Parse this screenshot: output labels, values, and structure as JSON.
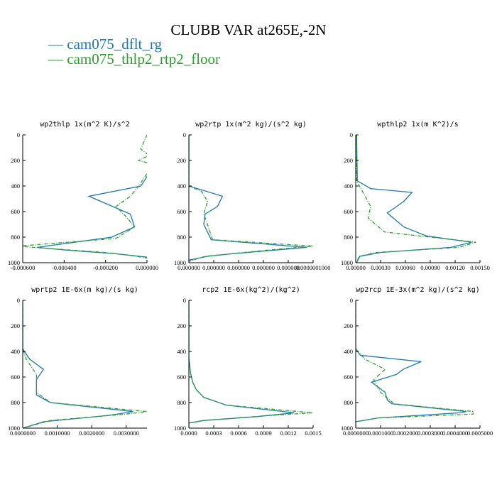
{
  "title": "CLUBB VAR at265E,-2N",
  "legend": [
    {
      "label": "cam075_dflt_rg",
      "color": "#1f77b4"
    },
    {
      "label": "cam075_thlp2_rtp2_floor",
      "color": "#2ca02c"
    }
  ],
  "chart_data": [
    {
      "type": "line",
      "title": "wp2thlp   1x(m^2 K)/s^2",
      "xlim": [
        -0.0006,
        0.0
      ],
      "ylim": [
        1000,
        0
      ],
      "xticks": [
        "-0.000600",
        "-0.000400",
        "-0.000200",
        "0.000000"
      ],
      "yticks": [
        "0",
        "200",
        "400",
        "600",
        "800",
        "1000"
      ],
      "series": [
        {
          "name": "cam075_dflt_rg",
          "points": [
            [
              2e-05,
              0
            ],
            [
              2e-05,
              100
            ],
            [
              3e-05,
              190
            ],
            [
              4e-05,
              230
            ],
            [
              -3e-05,
              400
            ],
            [
              -0.00028,
              480
            ],
            [
              -0.00018,
              550
            ],
            [
              -8e-05,
              620
            ],
            [
              -6e-05,
              720
            ],
            [
              -0.00017,
              800
            ],
            [
              -0.00053,
              880
            ],
            [
              -0.0004,
              900
            ],
            [
              -0.00015,
              930
            ],
            [
              2e-05,
              960
            ],
            [
              2e-05,
              1000
            ]
          ]
        },
        {
          "name": "cam075_thlp2_rtp2_floor",
          "points": [
            [
              0.0,
              0
            ],
            [
              -3e-05,
              110
            ],
            [
              1e-05,
              160
            ],
            [
              -4e-05,
              200
            ],
            [
              3e-05,
              230
            ],
            [
              -4e-05,
              400
            ],
            [
              -8e-05,
              480
            ],
            [
              -0.00015,
              560
            ],
            [
              -0.0001,
              640
            ],
            [
              -6e-05,
              720
            ],
            [
              -0.00015,
              810
            ],
            [
              -0.00062,
              870
            ],
            [
              -0.00055,
              880
            ],
            [
              -0.0002,
              920
            ],
            [
              -5e-05,
              950
            ],
            [
              2e-05,
              970
            ],
            [
              2e-05,
              1000
            ]
          ]
        }
      ]
    },
    {
      "type": "line",
      "title": "wp2rtp   1x(m^2 kg)/(s^2 kg)",
      "xlim": [
        0.0,
        1e-06
      ],
      "ylim": [
        1000,
        0
      ],
      "xticks": [
        "0.000000",
        "0.000000",
        "0.000000",
        "0.000000",
        "0.000000",
        "0.0000001000"
      ],
      "yticks": [
        "0",
        "200",
        "400",
        "600",
        "800",
        "1000"
      ],
      "series": [
        {
          "name": "cam075_dflt_rg",
          "points": [
            [
              0.0,
              0
            ],
            [
              0.0,
              400
            ],
            [
              2.7e-07,
              480
            ],
            [
              2.3e-07,
              560
            ],
            [
              1.3e-07,
              620
            ],
            [
              1.2e-07,
              700
            ],
            [
              1.8e-07,
              820
            ],
            [
              9.5e-07,
              880
            ],
            [
              3.5e-07,
              930
            ],
            [
              1.5e-07,
              950
            ],
            [
              0.0,
              980
            ],
            [
              0.0,
              1000
            ]
          ]
        },
        {
          "name": "cam075_thlp2_rtp2_floor",
          "points": [
            [
              0.0,
              0
            ],
            [
              0.0,
              400
            ],
            [
              1e-07,
              440
            ],
            [
              1.5e-07,
              520
            ],
            [
              1.2e-07,
              620
            ],
            [
              1.5e-07,
              700
            ],
            [
              1.9e-07,
              820
            ],
            [
              1e-06,
              870
            ],
            [
              6.5e-07,
              900
            ],
            [
              1.3e-07,
              950
            ],
            [
              0.0,
              990
            ],
            [
              0.0,
              1000
            ]
          ]
        }
      ]
    },
    {
      "type": "line",
      "title": "wpthlp2   1x(m K^2)/s",
      "xlim": [
        0.0,
        0.0015
      ],
      "ylim": [
        1000,
        0
      ],
      "xticks": [
        "0.00000",
        "0.00030",
        "0.00060",
        "0.00090",
        "0.00120",
        "0.00150"
      ],
      "yticks": [
        "0",
        "200",
        "400",
        "600",
        "800",
        "1000"
      ],
      "series": [
        {
          "name": "cam075_dflt_rg",
          "points": [
            [
              1e-05,
              0
            ],
            [
              2e-05,
              360
            ],
            [
              0.00018,
              420
            ],
            [
              0.00068,
              450
            ],
            [
              0.00058,
              520
            ],
            [
              0.00045,
              580
            ],
            [
              0.00038,
              610
            ],
            [
              0.00058,
              720
            ],
            [
              0.00085,
              790
            ],
            [
              0.0014,
              840
            ],
            [
              0.00115,
              880
            ],
            [
              0.0003,
              920
            ],
            [
              5e-05,
              950
            ],
            [
              1e-05,
              1000
            ]
          ]
        },
        {
          "name": "cam075_thlp2_rtp2_floor",
          "points": [
            [
              1e-05,
              0
            ],
            [
              1e-05,
              360
            ],
            [
              8e-05,
              440
            ],
            [
              0.00018,
              560
            ],
            [
              0.00015,
              650
            ],
            [
              0.00035,
              760
            ],
            [
              0.00145,
              840
            ],
            [
              0.00125,
              880
            ],
            [
              0.00025,
              920
            ],
            [
              4e-05,
              950
            ],
            [
              1e-05,
              1000
            ]
          ]
        }
      ]
    },
    {
      "type": "line",
      "title": "wprtp2   1E-6x(m kg)/(s kg)",
      "xlim": [
        0.0,
        0.0036
      ],
      "ylim": [
        1000,
        0
      ],
      "xticks": [
        "0.0000000",
        "0.0010000",
        "0.0020000",
        "0.0030000"
      ],
      "yticks": [
        "0",
        "200",
        "400",
        "600",
        "800",
        "1000"
      ],
      "series": [
        {
          "name": "cam075_dflt_rg",
          "points": [
            [
              0.0,
              0
            ],
            [
              0.0,
              380
            ],
            [
              0.0002,
              460
            ],
            [
              0.0006,
              540
            ],
            [
              0.0004,
              620
            ],
            [
              0.0004,
              740
            ],
            [
              0.0008,
              800
            ],
            [
              0.0032,
              870
            ],
            [
              0.0025,
              900
            ],
            [
              0.0006,
              950
            ],
            [
              0.0,
              1000
            ]
          ]
        },
        {
          "name": "cam075_thlp2_rtp2_floor",
          "points": [
            [
              0.0,
              0
            ],
            [
              0.0,
              380
            ],
            [
              0.0001,
              460
            ],
            [
              0.0004,
              580
            ],
            [
              0.0004,
              720
            ],
            [
              0.0008,
              800
            ],
            [
              0.0036,
              870
            ],
            [
              0.003,
              890
            ],
            [
              0.0008,
              940
            ],
            [
              0.0,
              1000
            ]
          ]
        }
      ]
    },
    {
      "type": "line",
      "title": "rcp2   1E-6x(kg^2)/(kg^2)",
      "xlim": [
        0.0,
        0.00165
      ],
      "ylim": [
        1000,
        0
      ],
      "xticks": [
        "0.0000",
        "0.0003",
        "0.0006",
        "0.0009",
        "0.0012",
        "0.0015"
      ],
      "yticks": [
        "0",
        "200",
        "400",
        "600",
        "800",
        "1000"
      ],
      "series": [
        {
          "name": "cam075_dflt_rg",
          "points": [
            [
              0.0,
              0
            ],
            [
              0.0,
              460
            ],
            [
              1e-05,
              500
            ],
            [
              2e-05,
              560
            ],
            [
              5e-05,
              640
            ],
            [
              0.0001,
              700
            ],
            [
              0.0002,
              760
            ],
            [
              0.0005,
              820
            ],
            [
              0.0014,
              880
            ],
            [
              0.0009,
              910
            ],
            [
              0.0002,
              940
            ],
            [
              0.0,
              960
            ],
            [
              0.0,
              1000
            ]
          ]
        },
        {
          "name": "cam075_thlp2_rtp2_floor",
          "points": [
            [
              0.0,
              0
            ],
            [
              0.0,
              460
            ],
            [
              1e-05,
              500
            ],
            [
              2e-05,
              560
            ],
            [
              5e-05,
              640
            ],
            [
              0.0001,
              700
            ],
            [
              0.0002,
              760
            ],
            [
              0.0005,
              820
            ],
            [
              0.00165,
              880
            ],
            [
              0.0011,
              900
            ],
            [
              0.0002,
              940
            ],
            [
              0.0,
              960
            ],
            [
              0.0,
              1000
            ]
          ]
        }
      ]
    },
    {
      "type": "line",
      "title": "wp2rcp   1E-3x(m^2 kg)/(s^2 kg)",
      "xlim": [
        0.0,
        0.00055
      ],
      "ylim": [
        1000,
        0
      ],
      "xticks": [
        "0.0000000",
        "0.0001000",
        "0.0002000",
        "0.0003000",
        "0.0004000",
        "0.0005000"
      ],
      "yticks": [
        "0",
        "200",
        "400",
        "600",
        "800",
        "1000"
      ],
      "series": [
        {
          "name": "cam075_dflt_rg",
          "points": [
            [
              0.0,
              0
            ],
            [
              0.0,
              380
            ],
            [
              2e-05,
              430
            ],
            [
              0.00029,
              480
            ],
            [
              0.00021,
              540
            ],
            [
              0.00018,
              580
            ],
            [
              7e-05,
              640
            ],
            [
              0.00013,
              720
            ],
            [
              0.00014,
              780
            ],
            [
              0.00016,
              810
            ],
            [
              0.00049,
              870
            ],
            [
              0.00046,
              880
            ],
            [
              0.0001,
              920
            ],
            [
              0.0,
              950
            ],
            [
              0.0,
              1000
            ]
          ]
        },
        {
          "name": "cam075_thlp2_rtp2_floor",
          "points": [
            [
              0.0,
              0
            ],
            [
              0.0,
              380
            ],
            [
              4e-05,
              460
            ],
            [
              0.00013,
              540
            ],
            [
              8e-05,
              620
            ],
            [
              0.00011,
              720
            ],
            [
              0.00017,
              810
            ],
            [
              0.00052,
              870
            ],
            [
              0.00052,
              890
            ],
            [
              0.0001,
              920
            ],
            [
              0.0,
              950
            ],
            [
              0.0,
              1000
            ]
          ]
        }
      ]
    }
  ]
}
